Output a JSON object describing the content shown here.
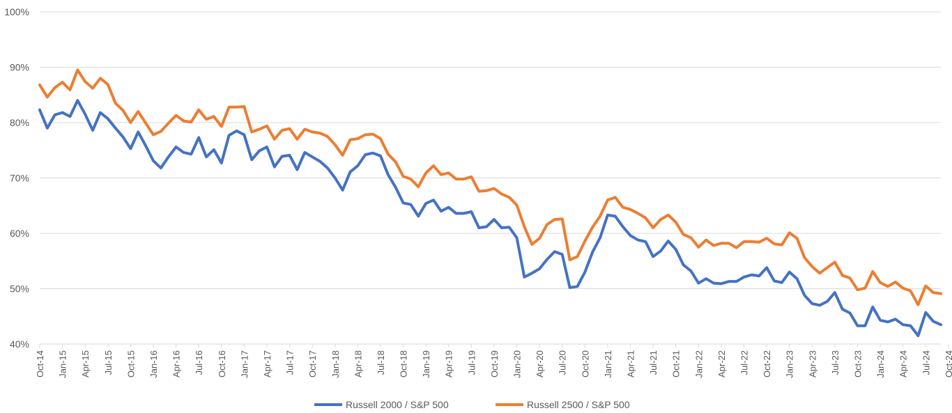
{
  "chart_data": {
    "type": "line",
    "title": "",
    "xlabel": "",
    "ylabel": "",
    "ylim": [
      40,
      100
    ],
    "y_ticks": [
      "40%",
      "50%",
      "60%",
      "70%",
      "80%",
      "90%",
      "100%"
    ],
    "grid": true,
    "legend_position": "bottom",
    "x_labels": [
      "Oct-14",
      "Jan-15",
      "Apr-15",
      "Jul-15",
      "Oct-15",
      "Jan-16",
      "Apr-16",
      "Jul-16",
      "Oct-16",
      "Jan-17",
      "Apr-17",
      "Jul-17",
      "Oct-17",
      "Jan-18",
      "Apr-18",
      "Jul-18",
      "Oct-18",
      "Jan-19",
      "Apr-19",
      "Jul-19",
      "Oct-19",
      "Jan-20",
      "Apr-20",
      "Jul-20",
      "Oct-20",
      "Jan-21",
      "Apr-21",
      "Jul-21",
      "Oct-21",
      "Jan-22",
      "Apr-22",
      "Jul-22",
      "Oct-22",
      "Jan-23",
      "Apr-23",
      "Jul-23",
      "Oct-23",
      "Jan-24",
      "Apr-24",
      "Jul-24",
      "Oct-24"
    ],
    "series": [
      {
        "name": "Russell 2000 / S&P 500",
        "color": "#4472c4",
        "values": [
          82.3,
          79.0,
          81.4,
          81.8,
          81.1,
          84.0,
          81.5,
          78.6,
          81.8,
          80.7,
          79.0,
          77.4,
          75.3,
          78.3,
          75.8,
          73.1,
          71.8,
          73.8,
          75.6,
          74.6,
          74.3,
          77.3,
          73.8,
          75.1,
          72.7,
          77.7,
          78.5,
          77.8,
          73.3,
          74.9,
          75.6,
          72.0,
          73.9,
          74.1,
          71.5,
          74.6,
          73.8,
          73.0,
          71.8,
          70.0,
          67.8,
          71.1,
          72.2,
          74.2,
          74.5,
          74.0,
          70.6,
          68.3,
          65.5,
          65.2,
          63.1,
          65.4,
          66.0,
          64.0,
          64.7,
          63.6,
          63.6,
          63.9,
          61.0,
          61.2,
          62.5,
          61.0,
          61.1,
          59.2,
          52.1,
          52.8,
          53.6,
          55.3,
          56.7,
          56.2,
          50.2,
          50.4,
          53.0,
          56.6,
          59.2,
          63.3,
          63.1,
          61.2,
          59.6,
          58.8,
          58.5,
          55.8,
          56.8,
          58.6,
          57.1,
          54.3,
          53.2,
          51.0,
          51.8,
          51.0,
          50.9,
          51.3,
          51.3,
          52.1,
          52.5,
          52.3,
          53.8,
          51.4,
          51.1,
          53.0,
          51.8,
          48.8,
          47.3,
          47.0,
          47.7,
          49.3,
          46.3,
          45.6,
          43.3,
          43.3,
          46.7,
          44.3,
          44.0,
          44.5,
          43.5,
          43.3,
          41.5,
          45.7,
          44.1,
          43.5
        ]
      },
      {
        "name": "Russell 2500 / S&P 500",
        "color": "#ed7d31",
        "values": [
          86.8,
          84.6,
          86.3,
          87.3,
          85.9,
          89.5,
          87.4,
          86.2,
          88.0,
          86.9,
          83.5,
          82.2,
          80.0,
          82.0,
          79.9,
          77.8,
          78.4,
          79.9,
          81.3,
          80.3,
          80.1,
          82.3,
          80.6,
          81.1,
          79.3,
          82.8,
          82.8,
          82.9,
          78.3,
          78.8,
          79.4,
          77.0,
          78.6,
          78.9,
          77.0,
          78.8,
          78.3,
          78.1,
          77.5,
          76.0,
          74.1,
          76.9,
          77.1,
          77.8,
          77.9,
          77.1,
          74.3,
          72.9,
          70.3,
          69.8,
          68.4,
          70.9,
          72.2,
          70.6,
          70.9,
          69.8,
          69.8,
          70.2,
          67.6,
          67.7,
          68.1,
          67.1,
          66.5,
          65.1,
          61.2,
          58.0,
          59.1,
          61.6,
          62.5,
          62.6,
          55.2,
          55.8,
          58.6,
          61.1,
          63.1,
          66.0,
          66.5,
          64.7,
          64.3,
          63.6,
          62.8,
          61.0,
          62.5,
          63.3,
          62.0,
          59.8,
          59.2,
          57.5,
          58.8,
          57.8,
          58.2,
          58.2,
          57.4,
          58.5,
          58.5,
          58.4,
          59.1,
          58.1,
          57.9,
          60.1,
          59.1,
          55.6,
          54.0,
          52.8,
          53.8,
          54.8,
          52.4,
          51.9,
          49.8,
          50.1,
          53.1,
          51.1,
          50.4,
          51.2,
          50.1,
          49.6,
          47.1,
          50.5,
          49.3,
          49.1
        ]
      }
    ]
  }
}
